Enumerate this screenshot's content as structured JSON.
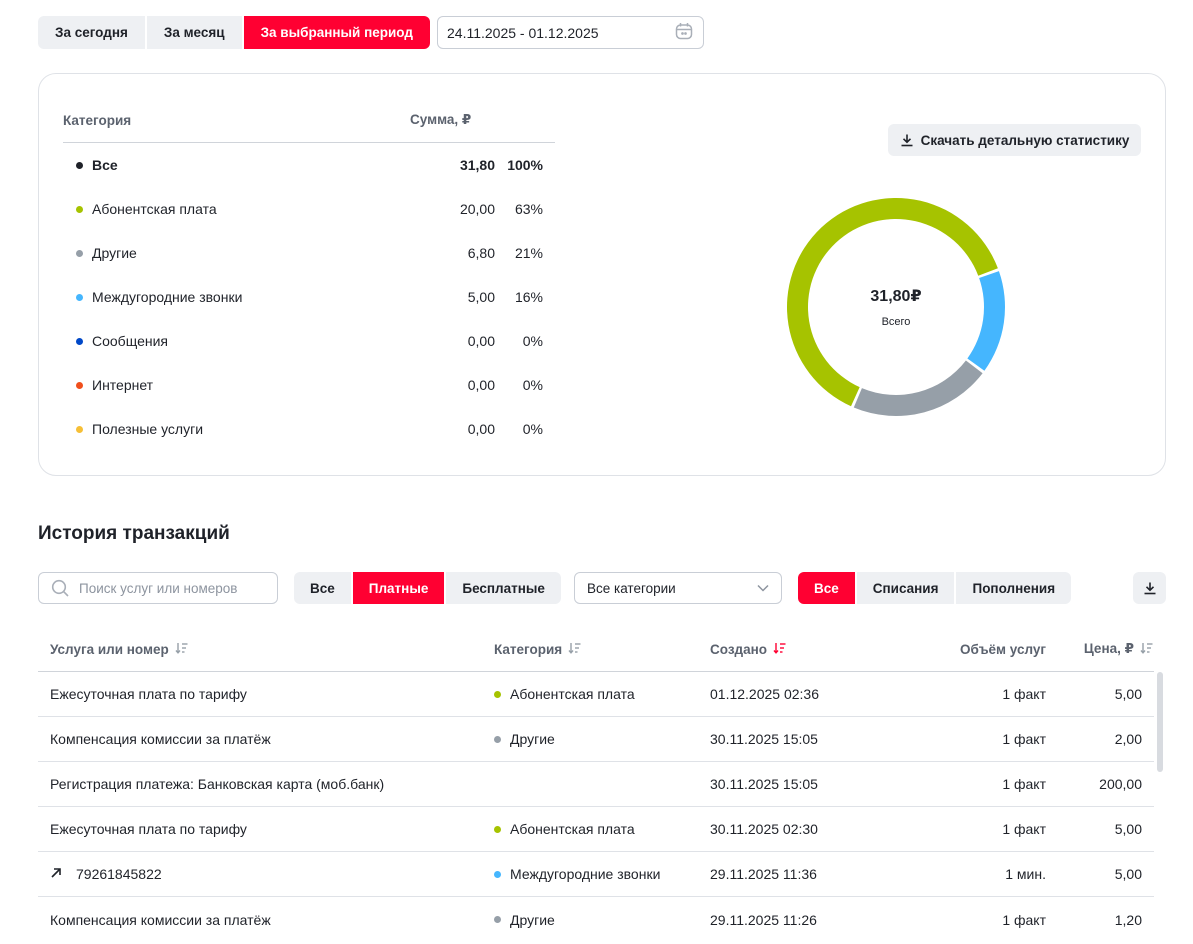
{
  "period": {
    "tabs": [
      "За сегодня",
      "За месяц",
      "За выбранный период"
    ],
    "active_tab": 2,
    "date_range": "24.11.2025 - 01.12.2025"
  },
  "stats": {
    "header": {
      "category": "Категория",
      "sum": "Сумма, ₽"
    },
    "rows": [
      {
        "name": "Все",
        "sum": "31,80",
        "pct": "100%",
        "color": "#1f2229"
      },
      {
        "name": "Абонентская плата",
        "sum": "20,00",
        "pct": "63%",
        "color": "#a6c300"
      },
      {
        "name": "Другие",
        "sum": "6,80",
        "pct": "21%",
        "color": "#969fa8"
      },
      {
        "name": "Междугородние звонки",
        "sum": "5,00",
        "pct": "16%",
        "color": "#45b6fe"
      },
      {
        "name": "Сообщения",
        "sum": "0,00",
        "pct": "0%",
        "color": "#0048c8"
      },
      {
        "name": "Интернет",
        "sum": "0,00",
        "pct": "0%",
        "color": "#f04f1c"
      },
      {
        "name": "Полезные услуги",
        "sum": "0,00",
        "pct": "0%",
        "color": "#f6bf36"
      }
    ],
    "download_label": "Скачать детальную статистику",
    "donut": {
      "total": "31,80₽",
      "label": "Всего",
      "segments": [
        {
          "name": "Абонентская плата",
          "value": 20.0,
          "color": "#a6c300"
        },
        {
          "name": "Междугородние звонки",
          "value": 5.0,
          "color": "#45b6fe"
        },
        {
          "name": "Другие",
          "value": 6.8,
          "color": "#969fa8"
        }
      ]
    }
  },
  "history": {
    "title": "История транзакций",
    "search_placeholder": "Поиск услуг или номеров",
    "pay_filter": [
      "Все",
      "Платные",
      "Бесплатные"
    ],
    "pay_active": 1,
    "category_select": "Все категории",
    "type_filter": [
      "Все",
      "Списания",
      "Пополнения"
    ],
    "type_active": 0,
    "columns": {
      "service": "Услуга или номер",
      "category": "Категория",
      "created": "Создано",
      "volume": "Объём услуг",
      "price": "Цена, ₽"
    },
    "rows": [
      {
        "service": "Ежесуточная плата по тарифу",
        "outgoing": false,
        "category": "Абонентская плата",
        "cat_color": "#a6c300",
        "created": "01.12.2025 02:36",
        "volume": "1 факт",
        "price": "5,00"
      },
      {
        "service": "Компенсация комиссии за платёж",
        "outgoing": false,
        "category": "Другие",
        "cat_color": "#969fa8",
        "created": "30.11.2025 15:05",
        "volume": "1 факт",
        "price": "2,00"
      },
      {
        "service": "Регистрация платежа: Банковская карта (моб.банк)",
        "outgoing": false,
        "category": "",
        "cat_color": "",
        "created": "30.11.2025 15:05",
        "volume": "1 факт",
        "price": "200,00"
      },
      {
        "service": "Ежесуточная плата по тарифу",
        "outgoing": false,
        "category": "Абонентская плата",
        "cat_color": "#a6c300",
        "created": "30.11.2025 02:30",
        "volume": "1 факт",
        "price": "5,00"
      },
      {
        "service": "79261845822",
        "outgoing": true,
        "category": "Междугородние звонки",
        "cat_color": "#45b6fe",
        "created": "29.11.2025 11:36",
        "volume": "1 мин.",
        "price": "5,00"
      },
      {
        "service": "Компенсация комиссии за платёж",
        "outgoing": false,
        "category": "Другие",
        "cat_color": "#969fa8",
        "created": "29.11.2025 11:26",
        "volume": "1 факт",
        "price": "1,20"
      }
    ]
  },
  "colors": {
    "accent": "#ff0032",
    "neutral_button": "#eef0f3",
    "border": "#c9ced6"
  }
}
